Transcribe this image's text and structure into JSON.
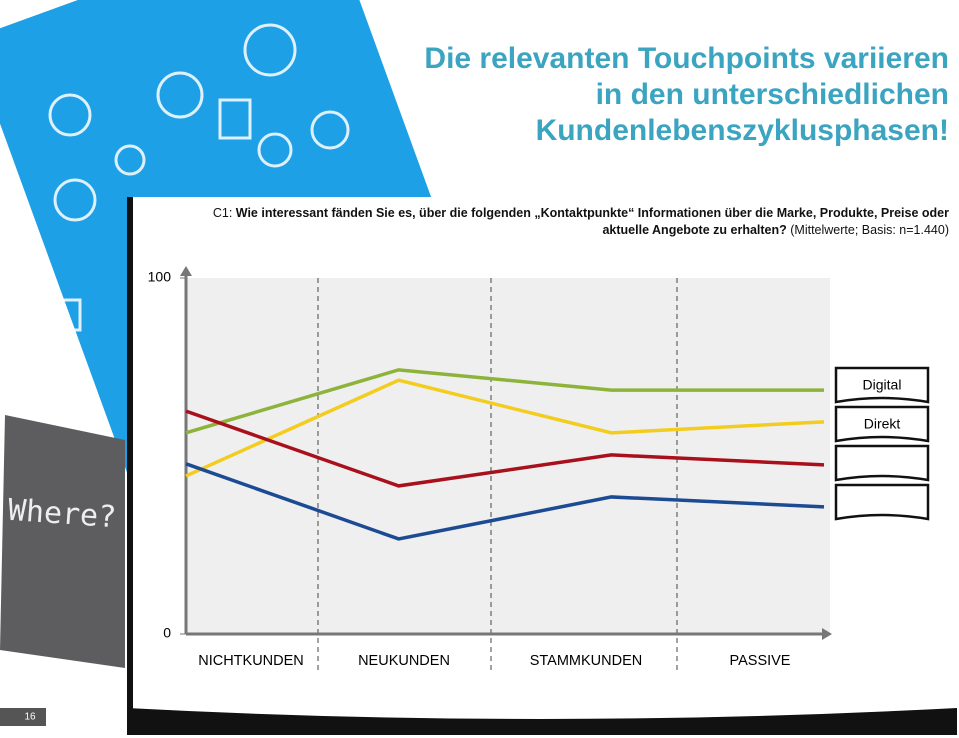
{
  "slide": {
    "title_lines": [
      "Die relevanten Touchpoints variieren",
      "in den unterschiedlichen",
      "Kundenlebenszyklusphasen!"
    ],
    "image_text": "Where?",
    "page_number": "16"
  },
  "chart_data": {
    "type": "line",
    "question_lines": [
      [
        "C1:",
        "Wie interessant fänden Sie es, über die folgenden „Kontaktpunkte“ Informationen über die Marke, Produkte, Preise oder"
      ],
      [
        "aktuelle Angebote zu erhalten?",
        "(Mittelwerte; Basis: n=1.440)"
      ]
    ],
    "categories": [
      "NICHTKUNDEN",
      "NEUKUNDEN",
      "STAMMKUNDEN",
      "PASSIVE"
    ],
    "series": [
      {
        "color": "#8db33a",
        "values": [
          56.5,
          74.2,
          68.5,
          68.5
        ]
      },
      {
        "color": "#f2cd1f",
        "values": [
          44.4,
          71.3,
          56.5,
          59.6
        ]
      },
      {
        "color": "#a8101c",
        "values": [
          62.6,
          41.6,
          50.3,
          47.5
        ]
      },
      {
        "color": "#1c4b94",
        "values": [
          47.8,
          26.7,
          38.5,
          35.7
        ]
      }
    ],
    "legend": [
      "Digital",
      "Direkt",
      null,
      null
    ],
    "ylim": [
      0,
      100
    ],
    "yticks": [
      0,
      100
    ]
  }
}
